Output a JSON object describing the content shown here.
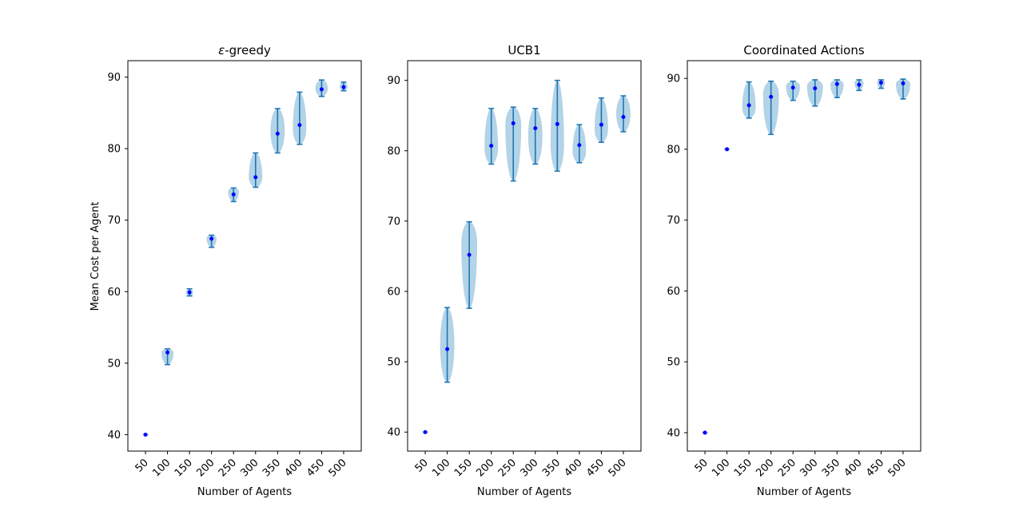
{
  "figure": {
    "x_axis_label": "Number of Agents",
    "y_axis_label": "Mean Cost per Agent"
  },
  "colors": {
    "violin_fill": "#a6cbe3",
    "violin_line": "#1f77b4",
    "median_dot": "#0000ff"
  },
  "chart_data": [
    {
      "type": "violin",
      "title_symbol": "ε",
      "title_rest": "-greedy",
      "categories": [
        "50",
        "100",
        "150",
        "200",
        "250",
        "300",
        "350",
        "400",
        "450",
        "500"
      ],
      "ylim": [
        37.7,
        92.3
      ],
      "yticks": [
        40,
        50,
        60,
        70,
        80,
        90
      ],
      "show_ylabel": true,
      "violins": [
        {
          "min": 40.0,
          "max": 40.0,
          "median": 40.0,
          "shape": "dot"
        },
        {
          "min": 49.8,
          "max": 52.0,
          "median": 51.5,
          "shape": "top"
        },
        {
          "min": 59.4,
          "max": 60.4,
          "median": 59.9,
          "shape": "mid"
        },
        {
          "min": 66.2,
          "max": 67.9,
          "median": 67.4,
          "shape": "top"
        },
        {
          "min": 72.6,
          "max": 74.5,
          "median": 73.6,
          "shape": "top"
        },
        {
          "min": 74.6,
          "max": 79.4,
          "median": 76.0,
          "shape": "low"
        },
        {
          "min": 79.4,
          "max": 85.6,
          "median": 82.1,
          "shape": "mid"
        },
        {
          "min": 80.6,
          "max": 87.9,
          "median": 83.3,
          "shape": "low"
        },
        {
          "min": 87.3,
          "max": 89.6,
          "median": 88.3,
          "shape": "mid"
        },
        {
          "min": 88.1,
          "max": 89.3,
          "median": 88.6,
          "shape": "mid"
        }
      ]
    },
    {
      "type": "violin",
      "title_symbol": "",
      "title_rest": "UCB1",
      "categories": [
        "50",
        "100",
        "150",
        "200",
        "250",
        "300",
        "350",
        "400",
        "450",
        "500"
      ],
      "ylim": [
        37.3,
        92.8
      ],
      "yticks": [
        40,
        50,
        60,
        70,
        80,
        90
      ],
      "show_ylabel": false,
      "violins": [
        {
          "min": 40.0,
          "max": 40.0,
          "median": 40.0,
          "shape": "dot"
        },
        {
          "min": 47.1,
          "max": 57.7,
          "median": 51.8,
          "shape": "mid"
        },
        {
          "min": 57.6,
          "max": 69.9,
          "median": 65.2,
          "shape": "top"
        },
        {
          "min": 78.1,
          "max": 86.0,
          "median": 80.7,
          "shape": "low"
        },
        {
          "min": 75.7,
          "max": 86.2,
          "median": 83.9,
          "shape": "top"
        },
        {
          "min": 78.1,
          "max": 86.0,
          "median": 83.2,
          "shape": "mid"
        },
        {
          "min": 77.1,
          "max": 90.0,
          "median": 83.8,
          "shape": "low"
        },
        {
          "min": 78.3,
          "max": 83.7,
          "median": 80.8,
          "shape": "low"
        },
        {
          "min": 81.2,
          "max": 87.5,
          "median": 83.7,
          "shape": "low"
        },
        {
          "min": 82.7,
          "max": 87.8,
          "median": 84.8,
          "shape": "mid"
        }
      ]
    },
    {
      "type": "violin",
      "title_symbol": "",
      "title_rest": "Coordinated Actions",
      "categories": [
        "50",
        "100",
        "150",
        "200",
        "250",
        "300",
        "350",
        "400",
        "450",
        "500"
      ],
      "ylim": [
        37.4,
        92.5
      ],
      "yticks": [
        40,
        50,
        60,
        70,
        80,
        90
      ],
      "show_ylabel": false,
      "violins": [
        {
          "min": 40.0,
          "max": 40.0,
          "median": 40.0,
          "shape": "dot"
        },
        {
          "min": 80.0,
          "max": 80.0,
          "median": 80.0,
          "shape": "dot"
        },
        {
          "min": 84.4,
          "max": 89.5,
          "median": 86.2,
          "shape": "low"
        },
        {
          "min": 82.1,
          "max": 89.6,
          "median": 87.4,
          "shape": "top"
        },
        {
          "min": 86.9,
          "max": 89.6,
          "median": 88.7,
          "shape": "top"
        },
        {
          "min": 86.1,
          "max": 89.8,
          "median": 88.6,
          "shape": "top"
        },
        {
          "min": 87.3,
          "max": 89.8,
          "median": 89.2,
          "shape": "top"
        },
        {
          "min": 88.3,
          "max": 89.8,
          "median": 89.1,
          "shape": "top"
        },
        {
          "min": 88.6,
          "max": 89.8,
          "median": 89.4,
          "shape": "top"
        },
        {
          "min": 87.1,
          "max": 89.9,
          "median": 89.3,
          "shape": "top"
        }
      ]
    }
  ]
}
